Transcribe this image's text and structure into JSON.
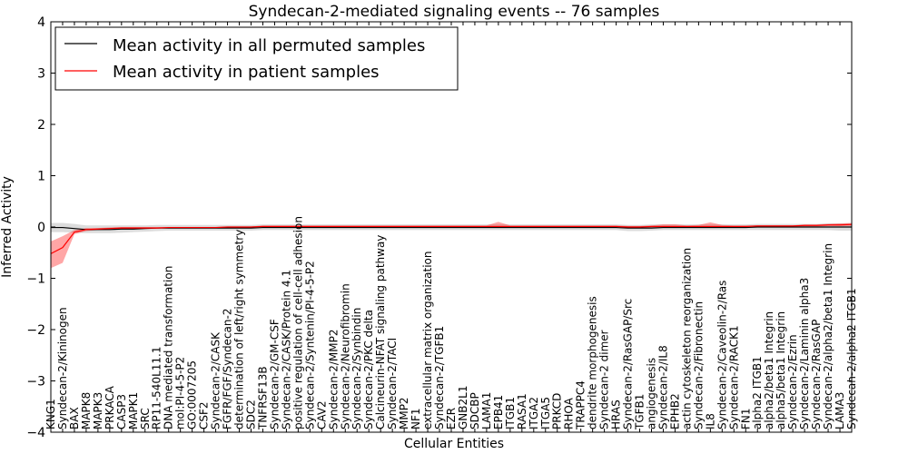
{
  "chart_data": {
    "type": "line",
    "title": "Syndecan-2-mediated signaling events -- 76 samples",
    "xlabel": "Cellular Entities",
    "ylabel": "Inferred Activity",
    "ylim": [
      -4,
      4
    ],
    "yticks": [
      -4,
      -3,
      -2,
      -1,
      0,
      1,
      2,
      3,
      4
    ],
    "ytick_labels": [
      "−4",
      "−3",
      "−2",
      "−1",
      "0",
      "1",
      "2",
      "3",
      "4"
    ],
    "legend": {
      "placement": "top-left",
      "entries": [
        "Mean activity in all permuted samples",
        "Mean activity in patient samples"
      ]
    },
    "colors": {
      "permuted": "#000000",
      "patient": "#ff0000",
      "patient_band": "#ff0000",
      "permuted_band": "#bfbfbf"
    },
    "categories": [
      "KNG1",
      "Syndecan-2/Kininogen",
      "BAX",
      "MAPK8",
      "MAPK3",
      "PRKACA",
      "CASP3",
      "MAPK1",
      "SRC",
      "RP11-540L11.1",
      "DNA mediated transformation",
      "mol:PI-4-5-P2",
      "GO:0007205",
      "CSF2",
      "Syndecan-2/CASK",
      "FGFR/FGF/Syndecan-2",
      "determination of left/right symmetry",
      "SDC2",
      "TNFRSF13B",
      "Syndecan-2/GM-CSF",
      "Syndecan-2/CASK/Protein 4.1",
      "positive regulation of cell-cell adhesion",
      "Syndecan-2/Syntenin/PI-4-5-P2",
      "CAV2",
      "Syndecan-2/MMP2",
      "Syndecan-2/Neurofibromin",
      "Syndecan-2/Synbindin",
      "Syndecan-2/PKC delta",
      "Calcineurin-NFAT signaling pathway",
      "Syndecan-2/TACI",
      "MMP2",
      "NF1",
      "extracellular matrix organization",
      "Syndecan-2/TGFB1",
      "EZR",
      "GNB2L1",
      "SDCBP",
      "LAMA1",
      "EPB41",
      "ITGB1",
      "RASA1",
      "ITGA2",
      "ITGA5",
      "PRKCD",
      "RHOA",
      "TRAPPC4",
      "dendrite morphogenesis",
      "Syndecan-2 dimer",
      "HRAS",
      "Syndecan-2/RasGAP/Src",
      "TGFB1",
      "angiogenesis",
      "Syndecan-2/IL8",
      "EPHB2",
      "actin cytoskeleton reorganization",
      "Syndecan-2/Fibronectin",
      "IL8",
      "Syndecan-2/Caveolin-2/Ras",
      "Syndecan-2/RACK1",
      "FN1",
      "alpha2 ITGB1",
      "alpha2/beta1 Integrin",
      "alpha5/beta1 Integrin",
      "Syndecan-2/Ezrin",
      "Syndecan-2/Laminin alpha3",
      "Syndecan-2/RasGAP",
      "Syndecan-2/alpha2/beta1 Integrin",
      "LAMA3",
      "Syndecan-2/alpha2 ITGB1"
    ],
    "series": [
      {
        "name": "Mean activity in all permuted samples",
        "values": [
          -0.01,
          -0.01,
          -0.03,
          -0.05,
          -0.05,
          -0.05,
          -0.04,
          -0.04,
          -0.03,
          -0.02,
          -0.02,
          -0.02,
          -0.02,
          -0.02,
          -0.02,
          -0.02,
          -0.02,
          -0.02,
          -0.01,
          -0.01,
          -0.01,
          -0.01,
          -0.01,
          -0.01,
          -0.01,
          -0.01,
          -0.01,
          -0.01,
          -0.01,
          -0.01,
          -0.01,
          -0.01,
          -0.01,
          -0.01,
          -0.01,
          -0.01,
          -0.01,
          -0.01,
          -0.01,
          -0.01,
          -0.01,
          -0.01,
          -0.01,
          -0.01,
          -0.01,
          -0.01,
          -0.01,
          -0.01,
          -0.01,
          -0.02,
          -0.02,
          -0.02,
          -0.01,
          -0.01,
          -0.01,
          -0.01,
          -0.01,
          -0.01,
          -0.01,
          -0.01,
          0.0,
          0.0,
          0.0,
          0.0,
          0.0,
          0.0,
          0.0,
          0.0,
          0.0
        ],
        "lower": [
          -0.1,
          -0.1,
          -0.11,
          -0.12,
          -0.12,
          -0.12,
          -0.11,
          -0.1,
          -0.09,
          -0.08,
          -0.07,
          -0.07,
          -0.07,
          -0.07,
          -0.07,
          -0.07,
          -0.07,
          -0.07,
          -0.06,
          -0.06,
          -0.06,
          -0.06,
          -0.06,
          -0.06,
          -0.06,
          -0.06,
          -0.06,
          -0.06,
          -0.06,
          -0.06,
          -0.06,
          -0.06,
          -0.06,
          -0.06,
          -0.06,
          -0.06,
          -0.06,
          -0.06,
          -0.06,
          -0.06,
          -0.06,
          -0.06,
          -0.06,
          -0.06,
          -0.06,
          -0.06,
          -0.06,
          -0.06,
          -0.06,
          -0.08,
          -0.08,
          -0.07,
          -0.06,
          -0.06,
          -0.06,
          -0.06,
          -0.06,
          -0.06,
          -0.06,
          -0.06,
          -0.06,
          -0.06,
          -0.06,
          -0.06,
          -0.06,
          -0.06,
          -0.06,
          -0.07,
          -0.07
        ],
        "upper": [
          0.08,
          0.08,
          0.06,
          0.03,
          0.03,
          0.03,
          0.03,
          0.03,
          0.03,
          0.04,
          0.04,
          0.04,
          0.04,
          0.04,
          0.04,
          0.04,
          0.04,
          0.04,
          0.05,
          0.05,
          0.05,
          0.05,
          0.05,
          0.05,
          0.05,
          0.05,
          0.05,
          0.05,
          0.05,
          0.05,
          0.05,
          0.05,
          0.05,
          0.05,
          0.05,
          0.05,
          0.05,
          0.05,
          0.05,
          0.05,
          0.05,
          0.05,
          0.05,
          0.05,
          0.05,
          0.05,
          0.05,
          0.05,
          0.05,
          0.04,
          0.04,
          0.05,
          0.05,
          0.05,
          0.05,
          0.05,
          0.05,
          0.05,
          0.05,
          0.05,
          0.06,
          0.06,
          0.06,
          0.06,
          0.06,
          0.06,
          0.07,
          0.07,
          0.07
        ]
      },
      {
        "name": "Mean activity in patient samples",
        "values": [
          -0.52,
          -0.4,
          -0.1,
          -0.05,
          -0.04,
          -0.03,
          -0.02,
          -0.02,
          -0.02,
          -0.02,
          -0.01,
          -0.01,
          -0.01,
          -0.01,
          -0.01,
          0.0,
          0.0,
          0.0,
          0.01,
          0.01,
          0.01,
          0.01,
          0.01,
          0.01,
          0.01,
          0.01,
          0.01,
          0.01,
          0.01,
          0.01,
          0.01,
          0.01,
          0.01,
          0.01,
          0.01,
          0.01,
          0.01,
          0.01,
          0.01,
          0.01,
          0.01,
          0.01,
          0.01,
          0.01,
          0.01,
          0.01,
          0.01,
          0.01,
          0.01,
          0.0,
          0.0,
          0.01,
          0.01,
          0.01,
          0.01,
          0.01,
          0.01,
          0.01,
          0.01,
          0.01,
          0.02,
          0.02,
          0.02,
          0.02,
          0.03,
          0.03,
          0.04,
          0.04,
          0.05
        ],
        "lower": [
          -0.8,
          -0.7,
          -0.14,
          -0.08,
          -0.06,
          -0.05,
          -0.04,
          -0.04,
          -0.03,
          -0.03,
          -0.02,
          -0.02,
          -0.02,
          -0.02,
          -0.02,
          -0.01,
          -0.01,
          -0.01,
          0.0,
          0.0,
          0.0,
          0.0,
          0.0,
          0.0,
          0.0,
          0.0,
          0.0,
          0.0,
          0.0,
          0.0,
          0.0,
          0.0,
          0.0,
          0.0,
          0.0,
          0.0,
          0.0,
          0.0,
          -0.02,
          0.0,
          0.0,
          0.0,
          0.0,
          0.0,
          0.0,
          0.0,
          0.0,
          0.0,
          0.0,
          -0.02,
          -0.02,
          -0.01,
          -0.01,
          0.0,
          0.0,
          -0.01,
          -0.01,
          0.0,
          0.0,
          0.0,
          0.01,
          0.01,
          0.01,
          0.01,
          0.01,
          0.01,
          0.02,
          0.02,
          0.02
        ],
        "upper": [
          -0.28,
          -0.18,
          -0.06,
          -0.02,
          -0.02,
          -0.01,
          0.0,
          0.0,
          0.0,
          0.0,
          0.0,
          0.0,
          0.0,
          0.0,
          0.0,
          0.01,
          0.01,
          0.01,
          0.03,
          0.03,
          0.03,
          0.03,
          0.03,
          0.03,
          0.03,
          0.03,
          0.03,
          0.03,
          0.03,
          0.03,
          0.03,
          0.03,
          0.03,
          0.03,
          0.03,
          0.03,
          0.03,
          0.03,
          0.1,
          0.03,
          0.03,
          0.03,
          0.03,
          0.03,
          0.03,
          0.03,
          0.03,
          0.03,
          0.03,
          0.02,
          0.02,
          0.03,
          0.05,
          0.05,
          0.03,
          0.04,
          0.09,
          0.04,
          0.03,
          0.03,
          0.03,
          0.03,
          0.03,
          0.03,
          0.05,
          0.05,
          0.06,
          0.07,
          0.08
        ]
      }
    ]
  }
}
